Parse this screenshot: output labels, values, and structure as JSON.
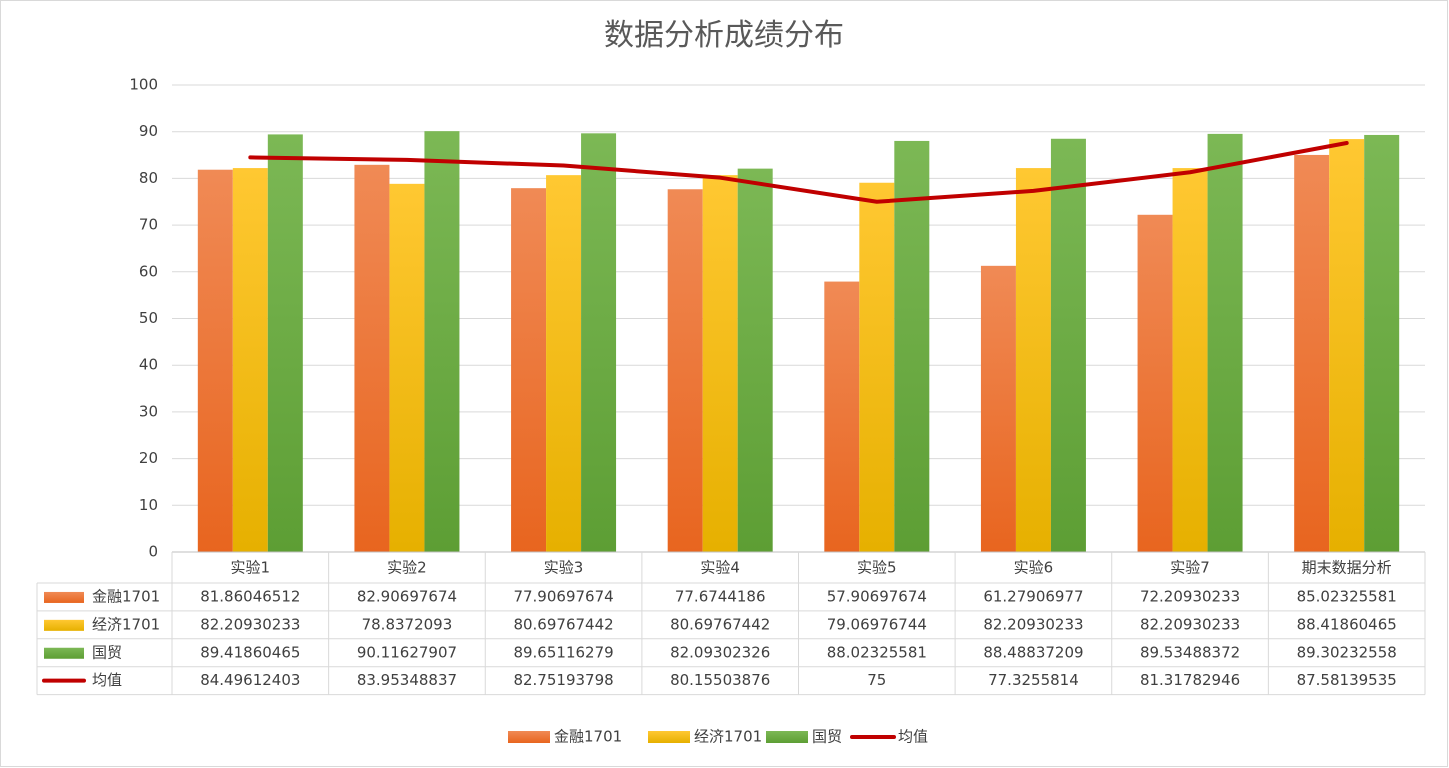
{
  "chart_data": {
    "type": "bar",
    "title": "数据分析成绩分布",
    "categories": [
      "实验1",
      "实验2",
      "实验3",
      "实验4",
      "实验5",
      "实验6",
      "实验7",
      "期末数据分析"
    ],
    "series": [
      {
        "name": "金融1701",
        "color": "#ed7d31",
        "values": [
          81.86046512,
          82.90697674,
          77.90697674,
          77.6744186,
          57.90697674,
          61.27906977,
          72.20930233,
          85.02325581
        ]
      },
      {
        "name": "经济1701",
        "color": "#ffc000",
        "values": [
          82.20930233,
          78.8372093,
          80.69767442,
          80.69767442,
          79.06976744,
          82.20930233,
          82.20930233,
          88.41860465
        ]
      },
      {
        "name": "国贸",
        "color": "#70ad47",
        "values": [
          89.41860465,
          90.11627907,
          89.65116279,
          82.09302326,
          88.02325581,
          88.48837209,
          89.53488372,
          89.30232558
        ]
      },
      {
        "name": "均值",
        "color": "#c00000",
        "type": "line",
        "values": [
          84.49612403,
          83.95348837,
          82.75193798,
          80.15503876,
          75,
          77.3255814,
          81.31782946,
          87.58139535
        ]
      }
    ],
    "ylim": [
      0,
      100
    ],
    "yticks": [
      0,
      10,
      20,
      30,
      40,
      50,
      60,
      70,
      80,
      90,
      100
    ],
    "grid": true,
    "data_table": true,
    "legend": "bottom"
  }
}
